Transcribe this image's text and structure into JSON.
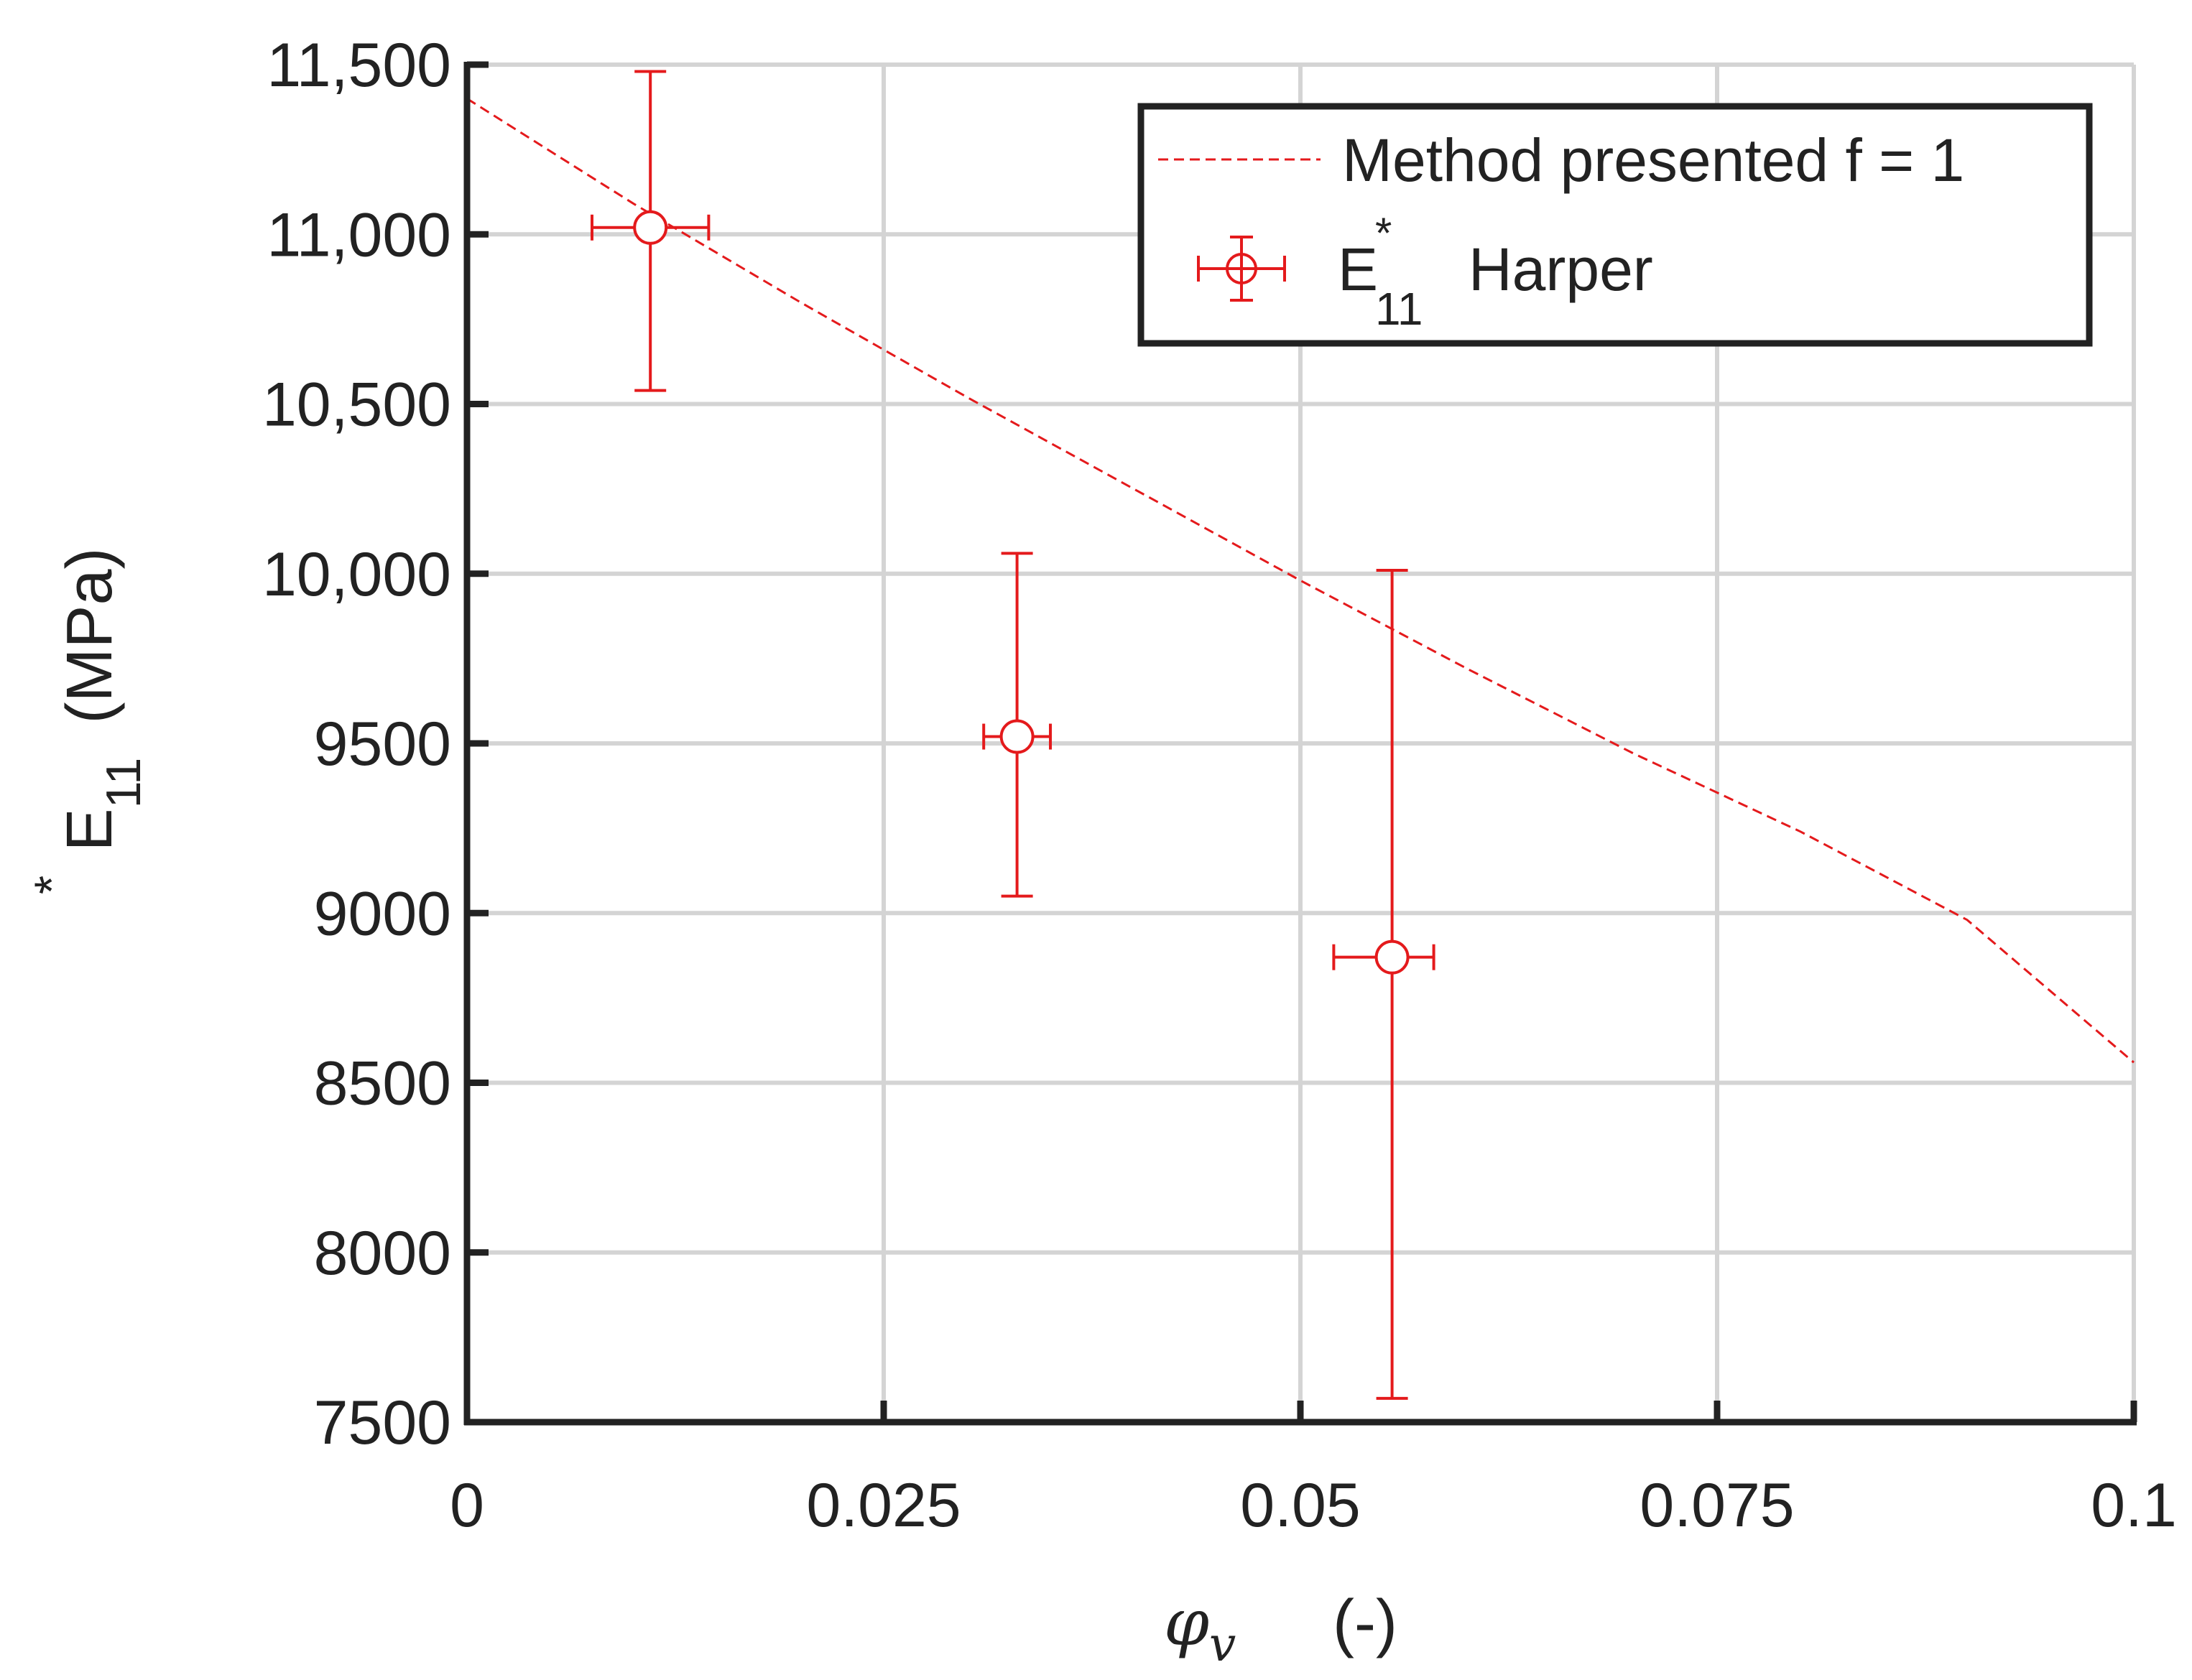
{
  "chart_data": {
    "type": "scatter",
    "xlim": [
      0,
      0.1
    ],
    "ylim": [
      7500,
      11500
    ],
    "xticks": [
      0,
      0.025,
      0.05,
      0.075,
      0.1
    ],
    "xtick_labels": [
      "0",
      "0.025",
      "0.05",
      "0.075",
      "0.1"
    ],
    "yticks": [
      7500,
      8000,
      8500,
      9000,
      9500,
      10000,
      10500,
      11000,
      11500
    ],
    "ytick_labels": [
      "7500",
      "8000",
      "8500",
      "9000",
      "9500",
      "10,000",
      "10,500",
      "11,000",
      "11,500"
    ],
    "grid": true,
    "legend_position": "top-right",
    "xlabel": {
      "symbol": "φ",
      "subscript": "v",
      "unit": "(-)"
    },
    "ylabel": {
      "symbol": "E",
      "superscript": "*",
      "subscript": "11",
      "unit": "(MPa)"
    },
    "colors": {
      "series": "#e41a1c",
      "axis": "#222222",
      "grid": "#d4d4d4"
    },
    "series": [
      {
        "name": "Method presented f = 1",
        "type": "line",
        "style": "dashed",
        "x": [
          0,
          0.01,
          0.02,
          0.03,
          0.04,
          0.05,
          0.06,
          0.07,
          0.08,
          0.09,
          0.1
        ],
        "y": [
          11400,
          11090,
          10800,
          10520,
          10250,
          9980,
          9720,
          9470,
          9240,
          8980,
          8560
        ]
      },
      {
        "name_parts": {
          "symbol": "E",
          "superscript": "*",
          "subscript": "11",
          "text": "Harper"
        },
        "type": "errorbar",
        "marker": "circle-open",
        "points": [
          {
            "x": 0.011,
            "y": 11020,
            "xerr": [
              0.0035,
              0.0035
            ],
            "yerr": [
              480,
              460
            ]
          },
          {
            "x": 0.033,
            "y": 9520,
            "xerr": [
              0.002,
              0.002
            ],
            "yerr": [
              470,
              540
            ]
          },
          {
            "x": 0.0555,
            "y": 8870,
            "xerr": [
              0.0035,
              0.0025
            ],
            "yerr": [
              1300,
              1140
            ]
          }
        ]
      }
    ]
  }
}
